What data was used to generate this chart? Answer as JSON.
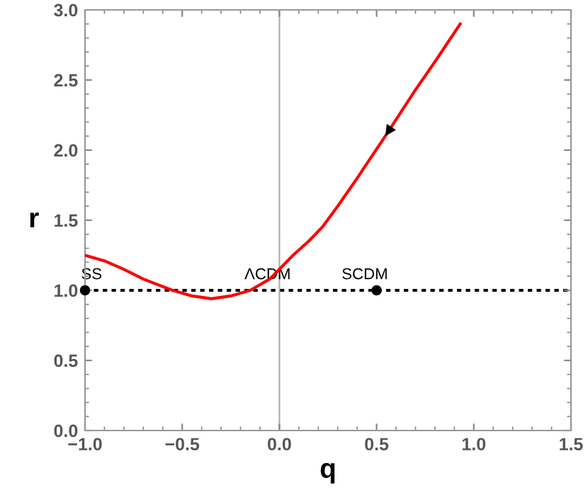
{
  "chart_data": {
    "type": "line",
    "xlabel": "q",
    "ylabel": "r",
    "xlim": [
      -1,
      1.5
    ],
    "ylim": [
      0,
      3
    ],
    "xticks": [
      {
        "value": -1,
        "label": "−1.0"
      },
      {
        "value": -0.5,
        "label": "−0.5"
      },
      {
        "value": 0,
        "label": "0.0"
      },
      {
        "value": 0.5,
        "label": "0.5"
      },
      {
        "value": 1,
        "label": "1.0"
      },
      {
        "value": 1.5,
        "label": "1.5"
      }
    ],
    "yticks": [
      {
        "value": 0,
        "label": "0.0"
      },
      {
        "value": 0.5,
        "label": "0.5"
      },
      {
        "value": 1,
        "label": "1.0"
      },
      {
        "value": 1.5,
        "label": "1.5"
      },
      {
        "value": 2,
        "label": "2.0"
      },
      {
        "value": 2.5,
        "label": "2.5"
      },
      {
        "value": 3,
        "label": "3.0"
      }
    ],
    "series": [
      {
        "color": "#ff0000",
        "x": [
          -1,
          -0.9,
          -0.8,
          -0.7,
          -0.55,
          -0.45,
          -0.35,
          -0.25,
          -0.15,
          -0.05,
          0,
          0.07,
          0.15,
          0.22,
          0.3,
          0.4,
          0.545,
          0.7,
          0.8,
          0.93
        ],
        "values": [
          1.25,
          1.21,
          1.15,
          1.08,
          1.0,
          0.96,
          0.94,
          0.96,
          1.0,
          1.08,
          1.15,
          1.25,
          1.35,
          1.45,
          1.6,
          1.8,
          2.1,
          2.43,
          2.63,
          2.9
        ]
      },
      {
        "type": "scatter",
        "marker": "circle",
        "color": "#000000",
        "x": [
          -1,
          0.5
        ],
        "values": [
          1,
          1
        ]
      }
    ],
    "ref_lines": [
      {
        "axis": "y",
        "value": 1,
        "color": "#000000",
        "line_style": "dotted"
      },
      {
        "axis": "x",
        "value": 0,
        "color": "#b0b0b0",
        "line_style": "solid"
      }
    ],
    "annotations": [
      {
        "text": "SS",
        "x": -1,
        "y": 1
      },
      {
        "text": "ΛCDM",
        "x": 0,
        "y": 1
      },
      {
        "text": "SCDM",
        "x": 0.5,
        "y": 1
      }
    ],
    "marker": "none",
    "grid": false,
    "legend": false
  }
}
